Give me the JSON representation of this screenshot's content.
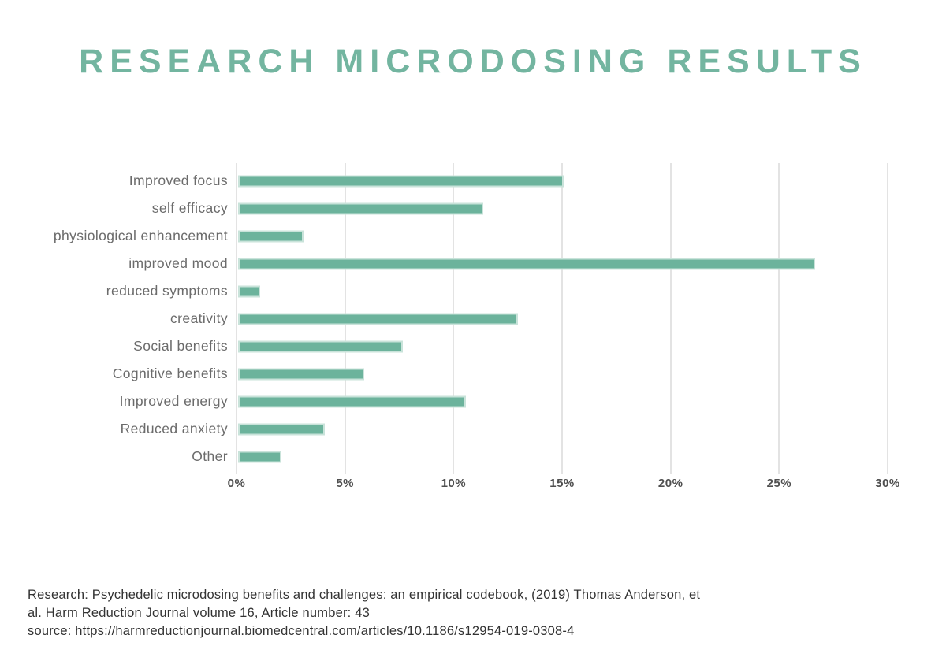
{
  "header": {
    "title": "RESEARCH MICRODOSING RESULTS"
  },
  "chart_data": {
    "type": "bar",
    "orientation": "horizontal",
    "title": "RESEARCH MICRODOSING RESULTS",
    "categories": [
      "Improved focus",
      "self efficacy",
      "physiological enhancement",
      "improved mood",
      "reduced symptoms",
      "creativity",
      "Social benefits",
      "Cognitive benefits",
      "Improved energy",
      "Reduced anxiety",
      "Other"
    ],
    "values": [
      15.0,
      11.3,
      3.0,
      26.6,
      1.0,
      12.9,
      7.6,
      5.8,
      10.5,
      4.0,
      2.0
    ],
    "unit": "%",
    "xlabel": "",
    "ylabel": "",
    "xlim": [
      0,
      30
    ],
    "xticks": [
      0,
      5,
      10,
      15,
      20,
      25,
      30
    ],
    "xtick_labels": [
      "0%",
      "5%",
      "10%",
      "15%",
      "20%",
      "25%",
      "30%"
    ],
    "grid": "vertical",
    "legend": "none",
    "bar_color": "#6cb39c",
    "bar_border_color": "#c9e3da"
  },
  "footer": {
    "lines": [
      "Research: Psychedelic microdosing benefits and challenges: an empirical codebook, (2019) Thomas Anderson, et",
      "al. Harm Reduction Journal volume 16, Article number: 43",
      "source: https://harmreductionjournal.biomedcentral.com/articles/10.1186/s12954-019-0308-4"
    ]
  },
  "colors": {
    "title_green": "#73b5a0",
    "bar_green": "#6cb39c",
    "bar_outline": "#c9e3da",
    "gridline": "#e3e3e3",
    "category_label": "#6b6b6b",
    "tick_label": "#4f4f4f",
    "footer_text": "#333333"
  }
}
